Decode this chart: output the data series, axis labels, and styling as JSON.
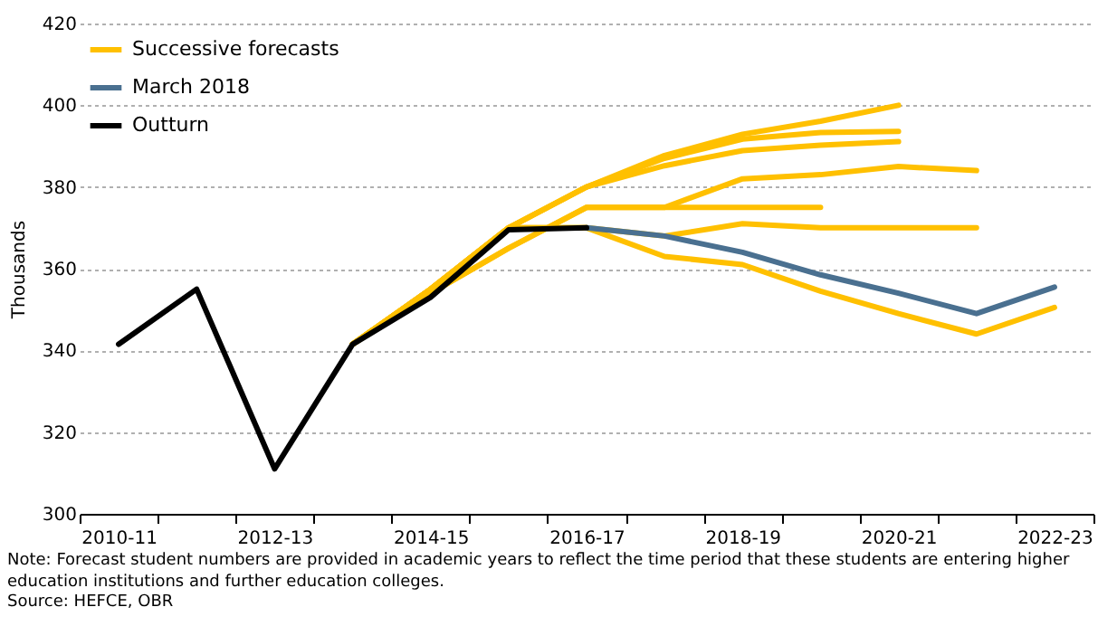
{
  "chart_data": {
    "type": "line",
    "ylabel": "Thousands",
    "categories": [
      "2010-11",
      null,
      "2012-13",
      null,
      "2014-15",
      null,
      "2016-17",
      null,
      "2018-19",
      null,
      "2020-21",
      null,
      "2022-23"
    ],
    "ylim": [
      300,
      420
    ],
    "yticks": [
      300,
      320,
      340,
      360,
      380,
      400,
      420
    ],
    "grid": "y",
    "legend": "top left",
    "line_style": "solid",
    "marker": "none",
    "series": [
      {
        "name": "Successive forecasts",
        "color": "#ffc000",
        "values": [
          null,
          null,
          null,
          341.5,
          355,
          370,
          380,
          387.7,
          392.9,
          396.1,
          400,
          null,
          null
        ]
      },
      {
        "color": "#ffc000",
        "values": [
          null,
          null,
          null,
          341.5,
          355,
          370,
          380,
          387,
          391.7,
          393.3,
          393.6,
          null,
          null
        ]
      },
      {
        "color": "#ffc000",
        "values": [
          null,
          null,
          null,
          341.5,
          355,
          370,
          380,
          385.2,
          388.9,
          390.2,
          391.1,
          null,
          null
        ]
      },
      {
        "color": "#ffc000",
        "values": [
          null,
          null,
          null,
          341.5,
          354,
          365,
          375,
          375,
          375,
          375,
          null,
          null,
          null
        ]
      },
      {
        "color": "#ffc000",
        "values": [
          null,
          null,
          null,
          341.5,
          354,
          365,
          375,
          375,
          382,
          383,
          385,
          384,
          null
        ]
      },
      {
        "color": "#ffc000",
        "values": [
          null,
          null,
          null,
          341.5,
          355,
          370,
          370,
          368,
          371,
          370,
          370,
          370,
          null
        ]
      },
      {
        "color": "#ffc000",
        "values": [
          null,
          null,
          null,
          341.5,
          355,
          370,
          370,
          363,
          361,
          354.5,
          349,
          344,
          350.5
        ]
      },
      {
        "name": "March 2018",
        "color": "#4a7090",
        "values": [
          null,
          null,
          null,
          null,
          null,
          null,
          370,
          368,
          364,
          358.5,
          354,
          349,
          355.5
        ]
      },
      {
        "name": "Outturn",
        "color": "#000000",
        "values": [
          341.5,
          355,
          311,
          341.5,
          353,
          369.5,
          370,
          null,
          null,
          null,
          null,
          null,
          null
        ]
      }
    ],
    "annotations": [
      "Note: Forecast student numbers are provided in academic years to reflect the time period that these students are entering higher education institutions and further education colleges.",
      "Source: HEFCE, OBR"
    ]
  }
}
